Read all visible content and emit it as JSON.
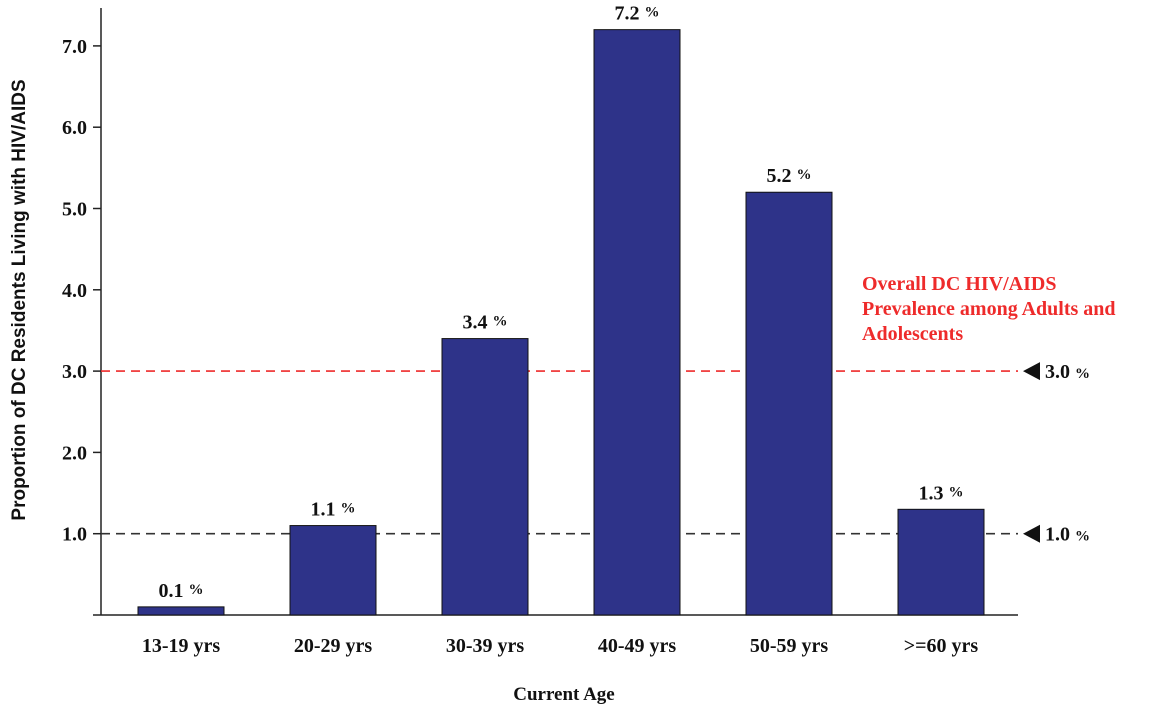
{
  "chart_data": {
    "type": "bar",
    "categories": [
      "13-19 yrs",
      "20-29 yrs",
      "30-39 yrs",
      "40-49 yrs",
      "50-59 yrs",
      ">=60 yrs"
    ],
    "values": [
      0.1,
      1.1,
      3.4,
      7.2,
      5.2,
      1.3
    ],
    "value_labels": [
      "0.1",
      "1.1",
      "3.4",
      "7.2",
      "5.2",
      "1.3"
    ],
    "value_suffix": "%",
    "xlabel": "Current Age",
    "ylabel": "Proportion of DC Residents Living with HIV/AIDS",
    "ylim": [
      0,
      7.4
    ],
    "yticks": [
      "1.0",
      "2.0",
      "3.0",
      "4.0",
      "5.0",
      "6.0",
      "7.0"
    ],
    "ytick_values": [
      1,
      2,
      3,
      4,
      5,
      6,
      7
    ],
    "bar_color": "#2e3389",
    "reference_lines": [
      {
        "value": 3.0,
        "label": "3.0",
        "suffix": "%",
        "color": "#ee2b2b"
      },
      {
        "value": 1.0,
        "label": "1.0",
        "suffix": "%",
        "color": "#333333"
      }
    ],
    "annotation": [
      "Overall DC HIV/AIDS",
      "Prevalence among Adults and",
      "Adolescents"
    ],
    "annotation_color": "#ee2b2b",
    "grid": false
  }
}
